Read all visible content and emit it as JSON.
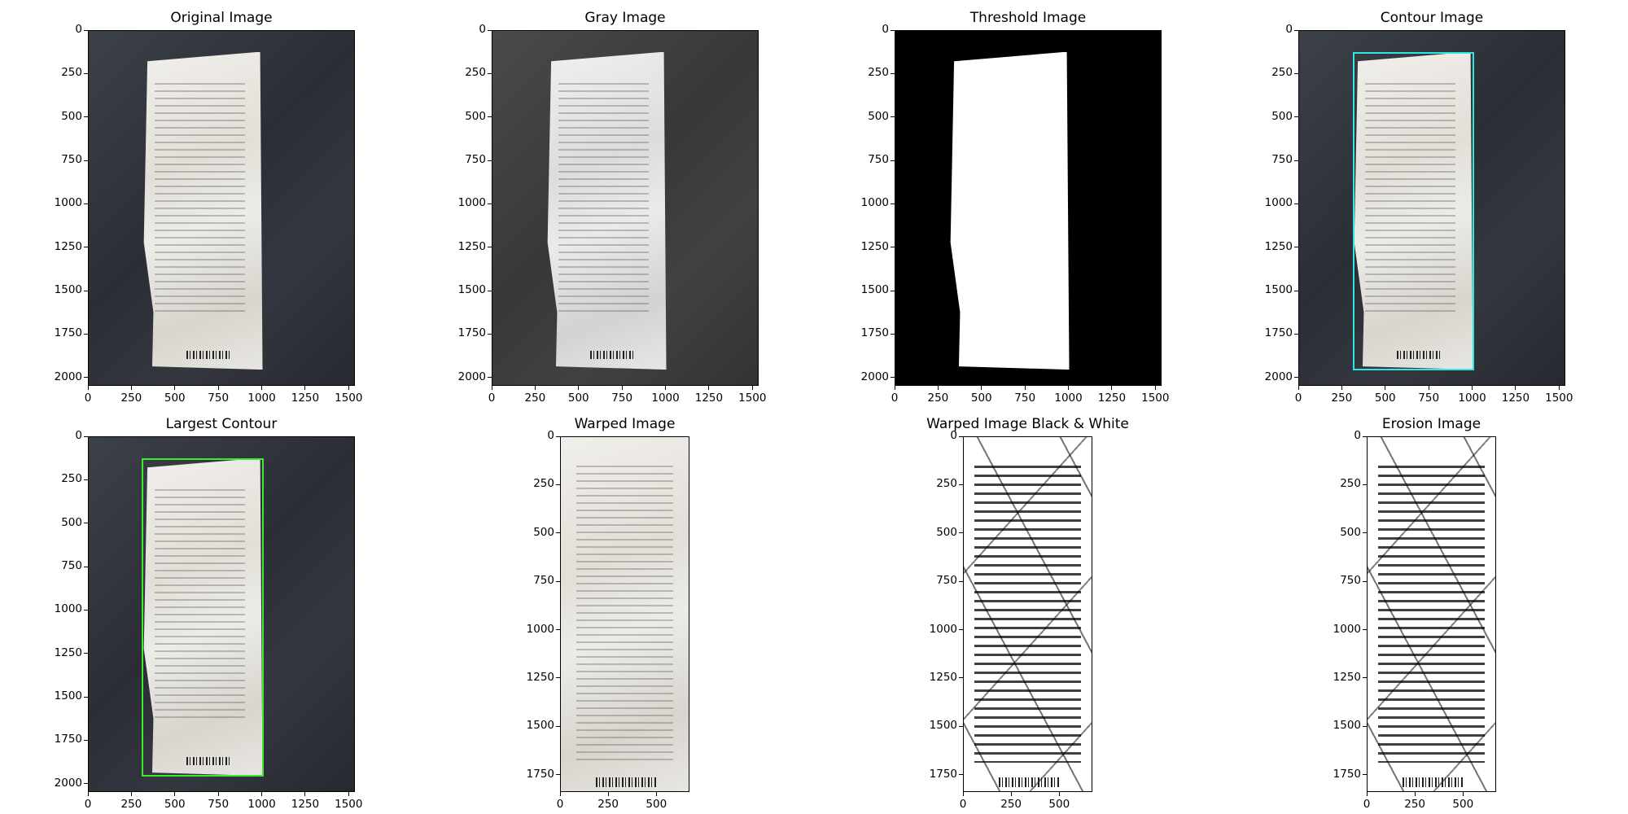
{
  "figure": {
    "panels": [
      {
        "title": "Original Image",
        "kind": "original",
        "xticks": [
          "0",
          "250",
          "500",
          "750",
          "1000",
          "1250",
          "1500"
        ],
        "yticks": [
          "0",
          "250",
          "500",
          "750",
          "1000",
          "1250",
          "1500",
          "1750",
          "2000"
        ]
      },
      {
        "title": "Gray Image",
        "kind": "gray",
        "xticks": [
          "0",
          "250",
          "500",
          "750",
          "1000",
          "1250",
          "1500"
        ],
        "yticks": [
          "0",
          "250",
          "500",
          "750",
          "1000",
          "1250",
          "1500",
          "1750",
          "2000"
        ]
      },
      {
        "title": "Threshold Image",
        "kind": "threshold",
        "xticks": [
          "0",
          "250",
          "500",
          "750",
          "1000",
          "1250",
          "1500"
        ],
        "yticks": [
          "0",
          "250",
          "500",
          "750",
          "1000",
          "1250",
          "1500",
          "1750",
          "2000"
        ]
      },
      {
        "title": "Contour Image",
        "kind": "contour",
        "xticks": [
          "0",
          "250",
          "500",
          "750",
          "1000",
          "1250",
          "1500"
        ],
        "yticks": [
          "0",
          "250",
          "500",
          "750",
          "1000",
          "1250",
          "1500",
          "1750",
          "2000"
        ]
      },
      {
        "title": "Largest Contour",
        "kind": "largest",
        "xticks": [
          "0",
          "250",
          "500",
          "750",
          "1000",
          "1250",
          "1500"
        ],
        "yticks": [
          "0",
          "250",
          "500",
          "750",
          "1000",
          "1250",
          "1500",
          "1750",
          "2000"
        ]
      },
      {
        "title": "Warped Image",
        "kind": "warped",
        "xticks": [
          "0",
          "250",
          "500"
        ],
        "yticks": [
          "0",
          "250",
          "500",
          "750",
          "1000",
          "1250",
          "1500",
          "1750"
        ]
      },
      {
        "title": "Warped Image Black & White",
        "kind": "bw",
        "xticks": [
          "0",
          "250",
          "500"
        ],
        "yticks": [
          "0",
          "250",
          "500",
          "750",
          "1000",
          "1250",
          "1500",
          "1750"
        ]
      },
      {
        "title": "Erosion Image",
        "kind": "erosion",
        "xticks": [
          "0",
          "250",
          "500"
        ],
        "yticks": [
          "0",
          "250",
          "500",
          "750",
          "1000",
          "1250",
          "1500",
          "1750"
        ]
      }
    ],
    "colors": {
      "contour": "#2ee8e0",
      "largest_contour": "#3dea2e",
      "fabric": "#31343c",
      "paper": "#e6e4de"
    }
  }
}
